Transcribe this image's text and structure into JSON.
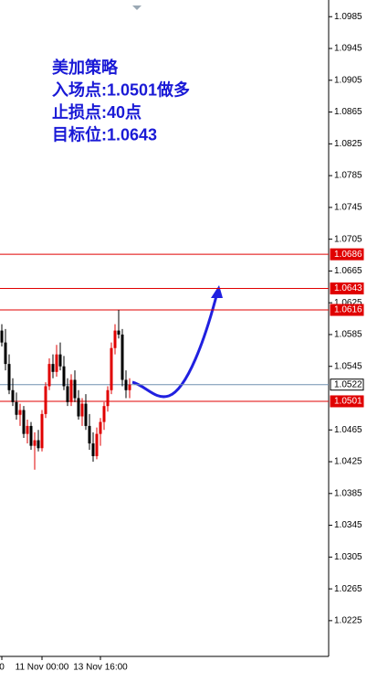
{
  "chart_data": {
    "type": "candlestick",
    "annotations": [
      "美加策略",
      "入场点:1.0501做多",
      "止损点:40点",
      "目标位:1.0643"
    ],
    "categories": [
      "0",
      null,
      null,
      null,
      null,
      null,
      null,
      null,
      null,
      null,
      null,
      "11 Nov 00:00",
      null,
      null,
      null,
      null,
      null,
      null,
      null,
      null,
      null,
      null,
      null,
      null,
      null,
      null,
      null,
      "13 Nov 16:00",
      null,
      null,
      null,
      null,
      null,
      null,
      null,
      null
    ],
    "open": [
      1.059,
      1.0575,
      1.0548,
      1.0515,
      1.05,
      1.0484,
      1.049,
      1.046,
      1.047,
      1.0445,
      1.0452,
      1.0442,
      1.0485,
      1.052,
      1.0548,
      1.0538,
      1.056,
      1.0545,
      1.052,
      1.05,
      1.0528,
      1.0505,
      1.0482,
      1.0498,
      1.047,
      1.0448,
      1.0432,
      1.046,
      1.0475,
      1.0495,
      1.0515,
      1.0568,
      1.059,
      1.0585,
      1.0528,
      1.0515
    ],
    "high": [
      1.0598,
      1.0592,
      1.056,
      1.053,
      1.0512,
      1.0498,
      1.0495,
      1.0478,
      1.0475,
      1.0462,
      1.0465,
      1.049,
      1.0525,
      1.0555,
      1.056,
      1.0572,
      1.0575,
      1.0558,
      1.053,
      1.0535,
      1.054,
      1.0515,
      1.0505,
      1.051,
      1.0485,
      1.0462,
      1.0468,
      1.048,
      1.05,
      1.052,
      1.0575,
      1.0598,
      1.0616,
      1.0592,
      1.054,
      1.053
    ],
    "low": [
      1.057,
      1.054,
      1.051,
      1.0495,
      1.0478,
      1.047,
      1.0455,
      1.0448,
      1.044,
      1.0415,
      1.0438,
      1.0438,
      1.048,
      1.0515,
      1.053,
      1.0532,
      1.054,
      1.0515,
      1.0495,
      1.0495,
      1.05,
      1.0478,
      1.047,
      1.0465,
      1.044,
      1.0425,
      1.0428,
      1.0445,
      1.0465,
      1.0488,
      1.051,
      1.056,
      1.058,
      1.052,
      1.0505,
      1.0505
    ],
    "close": [
      1.0575,
      1.0548,
      1.0515,
      1.05,
      1.0484,
      1.049,
      1.046,
      1.047,
      1.0445,
      1.0452,
      1.0442,
      1.0485,
      1.052,
      1.0548,
      1.0538,
      1.056,
      1.0545,
      1.052,
      1.05,
      1.0528,
      1.0505,
      1.0482,
      1.0498,
      1.047,
      1.0448,
      1.0432,
      1.046,
      1.0475,
      1.0495,
      1.0515,
      1.0568,
      1.059,
      1.0585,
      1.0528,
      1.0515,
      1.0522
    ],
    "up_color": "#e00000",
    "down_color": "#000000",
    "levels": [
      {
        "value": 1.0686,
        "color": "#e00000"
      },
      {
        "value": 1.0643,
        "color": "#e00000"
      },
      {
        "value": 1.0616,
        "color": "#e00000"
      },
      {
        "value": 1.0522,
        "color": "#7090b0"
      },
      {
        "value": 1.0501,
        "color": "#e00000"
      }
    ],
    "ylim": [
      1.018,
      1.1006
    ],
    "yticks": [
      1.0985,
      1.0945,
      1.0905,
      1.0865,
      1.0825,
      1.0785,
      1.0745,
      1.0705,
      1.0665,
      1.0625,
      1.0585,
      1.0545,
      1.0465,
      1.0425,
      1.0385,
      1.0345,
      1.0305,
      1.0265,
      1.0225
    ]
  }
}
